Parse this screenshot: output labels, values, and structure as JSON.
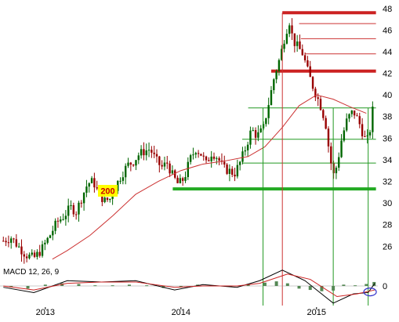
{
  "chart_data": {
    "type": "candlestick",
    "title": "",
    "y_axis": {
      "side": "right",
      "ticks": [
        48,
        46,
        44,
        42,
        40,
        38,
        36,
        34,
        32,
        30,
        28,
        26
      ],
      "ylim": [
        24.5,
        48.2
      ]
    },
    "x_axis": {
      "ticks": [
        "2013",
        "2014",
        "2015"
      ],
      "xlim": [
        "2012-09-01",
        "2015-06-15"
      ]
    },
    "candle_colors": {
      "up": "#006600",
      "down": "#990000",
      "ma": "#cc3333"
    },
    "moving_average": {
      "label": "200",
      "series": [
        {
          "date": "2013-01-20",
          "value": 24.8
        },
        {
          "date": "2013-03-01",
          "value": 25.6
        },
        {
          "date": "2013-05-01",
          "value": 27.0
        },
        {
          "date": "2013-07-01",
          "value": 28.8
        },
        {
          "date": "2013-09-01",
          "value": 30.8
        },
        {
          "date": "2013-11-01",
          "value": 32.0
        },
        {
          "date": "2014-01-01",
          "value": 33.0
        },
        {
          "date": "2014-03-01",
          "value": 33.6
        },
        {
          "date": "2014-05-01",
          "value": 33.9
        },
        {
          "date": "2014-07-01",
          "value": 34.3
        },
        {
          "date": "2014-08-15",
          "value": 35.2
        },
        {
          "date": "2014-10-01",
          "value": 37.0
        },
        {
          "date": "2014-11-15",
          "value": 39.0
        },
        {
          "date": "2015-01-01",
          "value": 40.0
        },
        {
          "date": "2015-02-15",
          "value": 39.6
        },
        {
          "date": "2015-04-01",
          "value": 38.9
        },
        {
          "date": "2015-05-15",
          "value": 38.3
        }
      ]
    },
    "support_resistance_lines": [
      {
        "price": 47.6,
        "start": "2014-10-01",
        "end": "2015-06-10",
        "style": "thick-red"
      },
      {
        "price": 46.6,
        "start": "2014-11-15",
        "end": "2015-06-10",
        "style": "thin-red"
      },
      {
        "price": 45.2,
        "start": "2014-11-20",
        "end": "2015-06-10",
        "style": "thin-red"
      },
      {
        "price": 43.8,
        "start": "2014-12-01",
        "end": "2015-06-10",
        "style": "thin-red"
      },
      {
        "price": 42.2,
        "start": "2014-09-01",
        "end": "2015-06-10",
        "style": "thick-red"
      },
      {
        "price": 38.8,
        "start": "2014-07-01",
        "end": "2015-06-10",
        "style": "thin-green"
      },
      {
        "price": 35.9,
        "start": "2014-06-15",
        "end": "2015-06-10",
        "style": "thin-green"
      },
      {
        "price": 33.7,
        "start": "2014-06-15",
        "end": "2015-06-10",
        "style": "thin-green"
      },
      {
        "price": 31.3,
        "start": "2013-12-10",
        "end": "2015-06-10",
        "style": "thick-green"
      }
    ],
    "vertical_markers": [
      {
        "date": "2014-08-10",
        "color": "green"
      },
      {
        "date": "2014-10-01",
        "color": "red"
      },
      {
        "date": "2015-02-15",
        "color": "green"
      },
      {
        "date": "2015-05-20",
        "color": "green"
      }
    ],
    "price_points": [
      {
        "date": "2012-09-10",
        "close": 26.5
      },
      {
        "date": "2012-10-01",
        "close": 26.8
      },
      {
        "date": "2012-10-20",
        "close": 26.0
      },
      {
        "date": "2012-11-10",
        "close": 25.2
      },
      {
        "date": "2012-12-01",
        "close": 24.9
      },
      {
        "date": "2012-12-20",
        "close": 25.6
      },
      {
        "date": "2013-01-10",
        "close": 26.8
      },
      {
        "date": "2013-02-01",
        "close": 28.2
      },
      {
        "date": "2013-02-20",
        "close": 28.8
      },
      {
        "date": "2013-03-10",
        "close": 29.6
      },
      {
        "date": "2013-03-25",
        "close": 29.2
      },
      {
        "date": "2013-04-10",
        "close": 30.6
      },
      {
        "date": "2013-04-25",
        "close": 31.8
      },
      {
        "date": "2013-05-10",
        "close": 32.0
      },
      {
        "date": "2013-05-25",
        "close": 30.8
      },
      {
        "date": "2013-06-10",
        "close": 30.2
      },
      {
        "date": "2013-06-25",
        "close": 30.4
      },
      {
        "date": "2013-07-10",
        "close": 31.6
      },
      {
        "date": "2013-07-25",
        "close": 32.6
      },
      {
        "date": "2013-08-10",
        "close": 33.5
      },
      {
        "date": "2013-08-25",
        "close": 33.8
      },
      {
        "date": "2013-09-10",
        "close": 34.5
      },
      {
        "date": "2013-09-25",
        "close": 34.8
      },
      {
        "date": "2013-10-10",
        "close": 35.0
      },
      {
        "date": "2013-10-25",
        "close": 34.0
      },
      {
        "date": "2013-11-10",
        "close": 33.3
      },
      {
        "date": "2013-11-25",
        "close": 33.7
      },
      {
        "date": "2013-12-10",
        "close": 32.5
      },
      {
        "date": "2013-12-25",
        "close": 31.7
      },
      {
        "date": "2014-01-10",
        "close": 32.3
      },
      {
        "date": "2014-01-25",
        "close": 34.0
      },
      {
        "date": "2014-02-10",
        "close": 35.0
      },
      {
        "date": "2014-02-25",
        "close": 34.5
      },
      {
        "date": "2014-03-10",
        "close": 33.6
      },
      {
        "date": "2014-03-25",
        "close": 34.7
      },
      {
        "date": "2014-04-10",
        "close": 34.2
      },
      {
        "date": "2014-04-25",
        "close": 33.2
      },
      {
        "date": "2014-05-10",
        "close": 33.0
      },
      {
        "date": "2014-05-25",
        "close": 32.7
      },
      {
        "date": "2014-06-10",
        "close": 33.8
      },
      {
        "date": "2014-06-25",
        "close": 35.2
      },
      {
        "date": "2014-07-10",
        "close": 36.8
      },
      {
        "date": "2014-07-25",
        "close": 36.2
      },
      {
        "date": "2014-08-10",
        "close": 36.8
      },
      {
        "date": "2014-08-25",
        "close": 39.2
      },
      {
        "date": "2014-09-10",
        "close": 41.8
      },
      {
        "date": "2014-09-25",
        "close": 43.5
      },
      {
        "date": "2014-10-10",
        "close": 45.8
      },
      {
        "date": "2014-10-20",
        "close": 46.8
      },
      {
        "date": "2014-10-30",
        "close": 45.0
      },
      {
        "date": "2014-11-10",
        "close": 44.5
      },
      {
        "date": "2014-11-25",
        "close": 43.8
      },
      {
        "date": "2014-12-10",
        "close": 42.0
      },
      {
        "date": "2014-12-25",
        "close": 40.5
      },
      {
        "date": "2015-01-10",
        "close": 39.2
      },
      {
        "date": "2015-01-25",
        "close": 37.5
      },
      {
        "date": "2015-02-05",
        "close": 34.5
      },
      {
        "date": "2015-02-15",
        "close": 32.5
      },
      {
        "date": "2015-02-25",
        "close": 33.5
      },
      {
        "date": "2015-03-10",
        "close": 36.0
      },
      {
        "date": "2015-03-25",
        "close": 37.8
      },
      {
        "date": "2015-04-10",
        "close": 38.5
      },
      {
        "date": "2015-04-25",
        "close": 37.5
      },
      {
        "date": "2015-05-10",
        "close": 36.0
      },
      {
        "date": "2015-05-20",
        "close": 35.8
      },
      {
        "date": "2015-05-30",
        "close": 37.8
      },
      {
        "date": "2015-06-07",
        "close": 40.8
      }
    ],
    "macd": {
      "label": "MACD 12, 26, 9",
      "zero_tick": "0",
      "ylim": [
        -1.6,
        1.6
      ],
      "macd_line": [
        {
          "date": "2012-09-10",
          "value": -0.1
        },
        {
          "date": "2012-12-01",
          "value": -0.5
        },
        {
          "date": "2013-03-01",
          "value": 0.4
        },
        {
          "date": "2013-06-01",
          "value": 0.3
        },
        {
          "date": "2013-09-01",
          "value": 0.4
        },
        {
          "date": "2013-12-15",
          "value": -0.3
        },
        {
          "date": "2014-03-01",
          "value": 0.1
        },
        {
          "date": "2014-06-01",
          "value": -0.1
        },
        {
          "date": "2014-08-01",
          "value": 0.4
        },
        {
          "date": "2014-10-01",
          "value": 1.2
        },
        {
          "date": "2014-12-01",
          "value": 0.4
        },
        {
          "date": "2015-02-15",
          "value": -1.3
        },
        {
          "date": "2015-04-10",
          "value": -0.6
        },
        {
          "date": "2015-05-20",
          "value": -0.5
        },
        {
          "date": "2015-06-07",
          "value": 0.2
        }
      ],
      "signal_line": [
        {
          "date": "2012-09-10",
          "value": 0.0
        },
        {
          "date": "2012-12-01",
          "value": -0.3
        },
        {
          "date": "2013-03-01",
          "value": 0.2
        },
        {
          "date": "2013-06-01",
          "value": 0.3
        },
        {
          "date": "2013-09-01",
          "value": 0.3
        },
        {
          "date": "2013-12-15",
          "value": -0.1
        },
        {
          "date": "2014-03-01",
          "value": 0.0
        },
        {
          "date": "2014-06-01",
          "value": 0.0
        },
        {
          "date": "2014-08-01",
          "value": 0.2
        },
        {
          "date": "2014-10-15",
          "value": 0.9
        },
        {
          "date": "2014-12-15",
          "value": 0.5
        },
        {
          "date": "2015-02-25",
          "value": -0.8
        },
        {
          "date": "2015-04-20",
          "value": -0.6
        },
        {
          "date": "2015-06-07",
          "value": -0.3
        }
      ],
      "histogram": [
        {
          "date": "2012-10-01",
          "value": -0.1
        },
        {
          "date": "2012-11-15",
          "value": -0.2
        },
        {
          "date": "2013-01-01",
          "value": 0.1
        },
        {
          "date": "2013-02-15",
          "value": 0.2
        },
        {
          "date": "2013-04-01",
          "value": 0.15
        },
        {
          "date": "2013-05-15",
          "value": 0.05
        },
        {
          "date": "2013-07-01",
          "value": 0.05
        },
        {
          "date": "2013-08-15",
          "value": 0.1
        },
        {
          "date": "2013-10-01",
          "value": 0.05
        },
        {
          "date": "2013-11-15",
          "value": -0.15
        },
        {
          "date": "2014-01-01",
          "value": -0.1
        },
        {
          "date": "2014-02-15",
          "value": 0.1
        },
        {
          "date": "2014-04-01",
          "value": 0.05
        },
        {
          "date": "2014-05-15",
          "value": -0.05
        },
        {
          "date": "2014-07-01",
          "value": 0.1
        },
        {
          "date": "2014-08-15",
          "value": 0.25
        },
        {
          "date": "2014-09-15",
          "value": 0.35
        },
        {
          "date": "2014-10-15",
          "value": 0.2
        },
        {
          "date": "2014-11-15",
          "value": -0.2
        },
        {
          "date": "2014-12-15",
          "value": -0.3
        },
        {
          "date": "2015-01-15",
          "value": -0.4
        },
        {
          "date": "2015-02-15",
          "value": -0.35
        },
        {
          "date": "2015-03-15",
          "value": 0.1
        },
        {
          "date": "2015-04-15",
          "value": 0.05
        },
        {
          "date": "2015-05-15",
          "value": 0.15
        },
        {
          "date": "2015-06-05",
          "value": 0.3
        }
      ],
      "highlight_circle_date": "2015-05-25"
    }
  }
}
